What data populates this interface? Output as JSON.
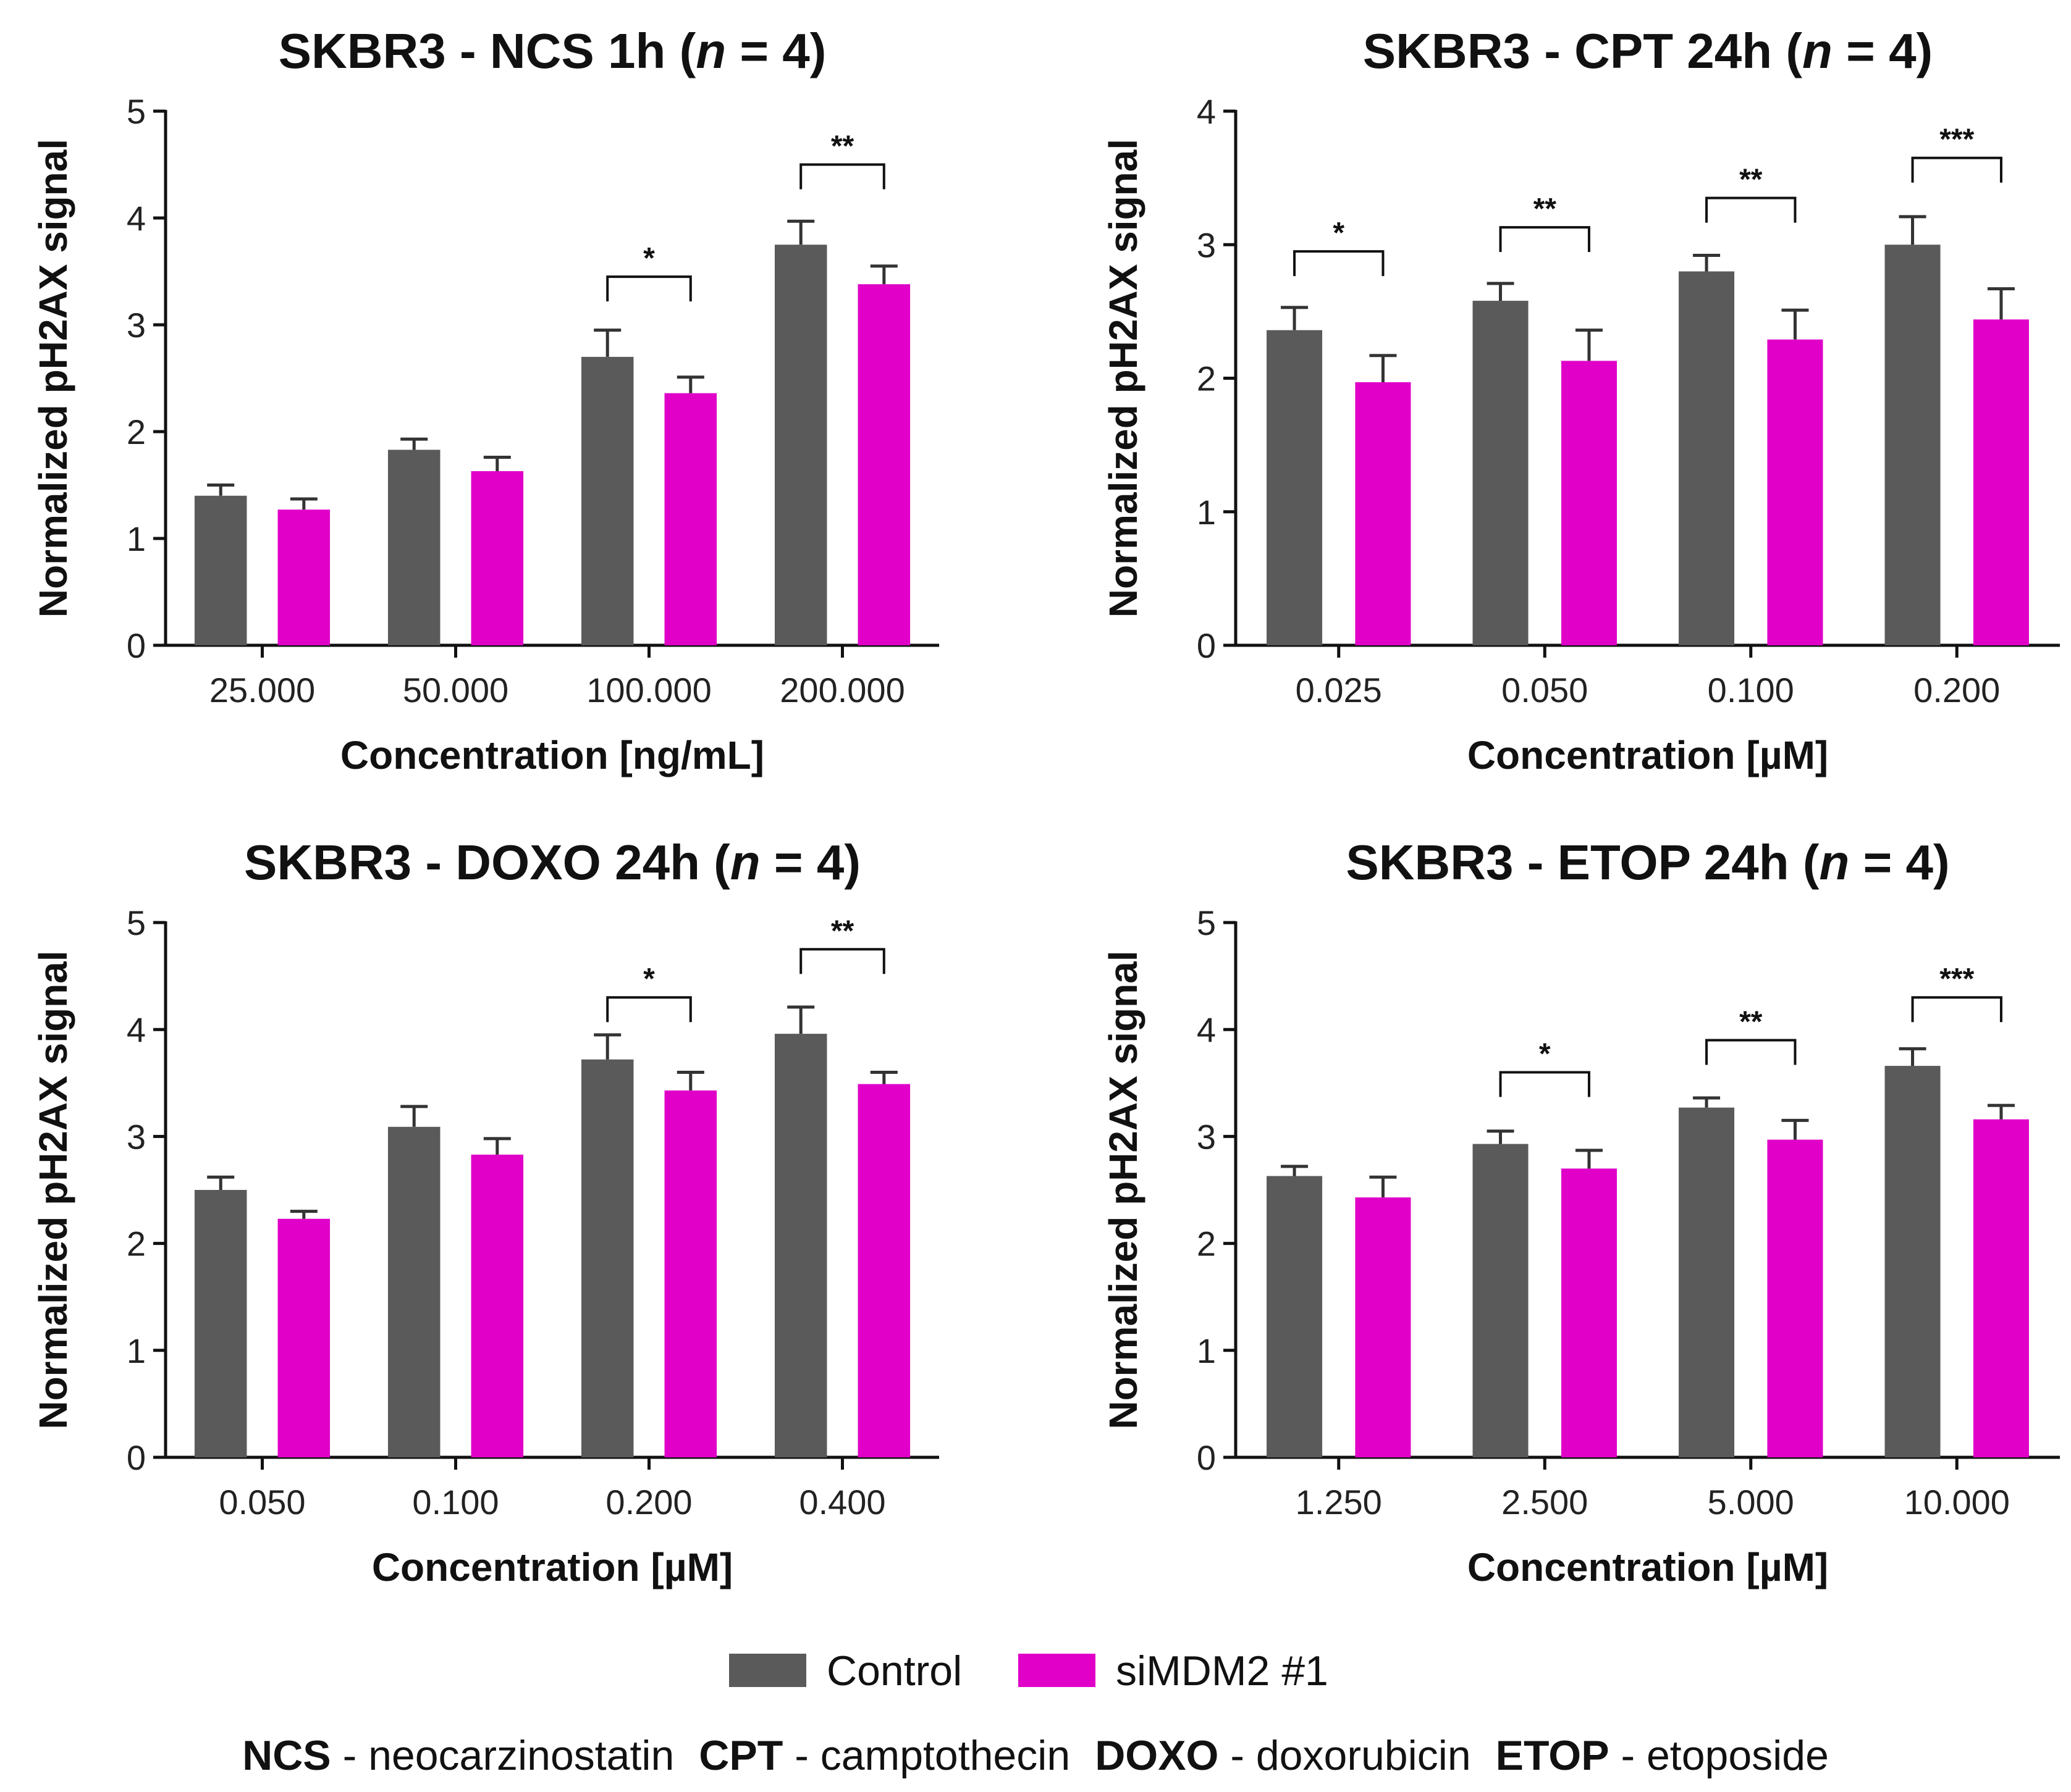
{
  "chart_data": [
    {
      "type": "bar",
      "title": "SKBR3 - NCS 1h (n = 4)",
      "title_parts": [
        "SKBR3 - NCS 1h (",
        "n",
        " = 4)"
      ],
      "xlabel": "Concentration [ng/mL]",
      "ylabel": "Normalized pH2AX signal",
      "ylim": [
        0,
        5
      ],
      "yticks": [
        "0",
        "1",
        "2",
        "3",
        "4",
        "5"
      ],
      "categories": [
        "25.000",
        "50.000",
        "100.000",
        "200.000"
      ],
      "series": [
        {
          "name": "Control",
          "values": [
            1.4,
            1.83,
            2.7,
            3.75
          ],
          "errors": [
            0.1,
            0.1,
            0.25,
            0.22
          ]
        },
        {
          "name": "siMDM2 #1",
          "values": [
            1.27,
            1.63,
            2.36,
            3.38
          ],
          "errors": [
            0.1,
            0.13,
            0.15,
            0.17
          ]
        }
      ],
      "significance": [
        {
          "category": 2,
          "label": "*",
          "level": 3.45
        },
        {
          "category": 3,
          "label": "**",
          "level": 4.5
        }
      ]
    },
    {
      "type": "bar",
      "title": "SKBR3 - CPT 24h (n = 4)",
      "title_parts": [
        "SKBR3 - CPT 24h (",
        "n",
        " = 4)"
      ],
      "xlabel": "Concentration [µM]",
      "ylabel": "Normalized pH2AX signal",
      "ylim": [
        0,
        4
      ],
      "yticks": [
        "0",
        "1",
        "2",
        "3",
        "4"
      ],
      "categories": [
        "0.025",
        "0.050",
        "0.100",
        "0.200"
      ],
      "series": [
        {
          "name": "Control",
          "values": [
            2.36,
            2.58,
            2.8,
            3.0
          ],
          "errors": [
            0.17,
            0.13,
            0.12,
            0.21
          ]
        },
        {
          "name": "siMDM2 #1",
          "values": [
            1.97,
            2.13,
            2.29,
            2.44
          ],
          "errors": [
            0.2,
            0.23,
            0.22,
            0.23
          ]
        }
      ],
      "significance": [
        {
          "category": 0,
          "label": "*",
          "level": 2.95
        },
        {
          "category": 1,
          "label": "**",
          "level": 3.13
        },
        {
          "category": 2,
          "label": "**",
          "level": 3.35
        },
        {
          "category": 3,
          "label": "***",
          "level": 3.65
        }
      ]
    },
    {
      "type": "bar",
      "title": "SKBR3 - DOXO 24h (n = 4)",
      "title_parts": [
        "SKBR3 - DOXO 24h (",
        "n",
        " = 4)"
      ],
      "xlabel": "Concentration [µM]",
      "ylabel": "Normalized pH2AX signal",
      "ylim": [
        0,
        5
      ],
      "yticks": [
        "0",
        "1",
        "2",
        "3",
        "4",
        "5"
      ],
      "categories": [
        "0.050",
        "0.100",
        "0.200",
        "0.400"
      ],
      "series": [
        {
          "name": "Control",
          "values": [
            2.5,
            3.09,
            3.72,
            3.96
          ],
          "errors": [
            0.12,
            0.19,
            0.23,
            0.25
          ]
        },
        {
          "name": "siMDM2 #1",
          "values": [
            2.23,
            2.83,
            3.43,
            3.49
          ],
          "errors": [
            0.07,
            0.15,
            0.17,
            0.11
          ]
        }
      ],
      "significance": [
        {
          "category": 2,
          "label": "*",
          "level": 4.3
        },
        {
          "category": 3,
          "label": "**",
          "level": 4.75
        }
      ]
    },
    {
      "type": "bar",
      "title": "SKBR3 - ETOP 24h (n = 4)",
      "title_parts": [
        "SKBR3 - ETOP 24h (",
        "n",
        " = 4)"
      ],
      "xlabel": "Concentration [µM]",
      "ylabel": "Normalized pH2AX signal",
      "ylim": [
        0,
        5
      ],
      "yticks": [
        "0",
        "1",
        "2",
        "3",
        "4",
        "5"
      ],
      "categories": [
        "1.250",
        "2.500",
        "5.000",
        "10.000"
      ],
      "series": [
        {
          "name": "Control",
          "values": [
            2.63,
            2.93,
            3.27,
            3.66
          ],
          "errors": [
            0.09,
            0.12,
            0.09,
            0.16
          ]
        },
        {
          "name": "siMDM2 #1",
          "values": [
            2.43,
            2.7,
            2.97,
            3.16
          ],
          "errors": [
            0.19,
            0.17,
            0.18,
            0.13
          ]
        }
      ],
      "significance": [
        {
          "category": 1,
          "label": "*",
          "level": 3.6
        },
        {
          "category": 2,
          "label": "**",
          "level": 3.9
        },
        {
          "category": 3,
          "label": "***",
          "level": 4.3
        }
      ]
    }
  ],
  "legend": [
    {
      "name": "Control",
      "color": "#5a5a5a"
    },
    {
      "name": "siMDM2 #1",
      "color": "#e000c8"
    }
  ],
  "abbreviations": [
    {
      "abbr": "NCS",
      "text": " - neocarzinostatin"
    },
    {
      "abbr": "CPT",
      "text": " - camptothecin"
    },
    {
      "abbr": "DOXO",
      "text": " - doxorubicin"
    },
    {
      "abbr": "ETOP",
      "text": " - etoposide"
    }
  ]
}
